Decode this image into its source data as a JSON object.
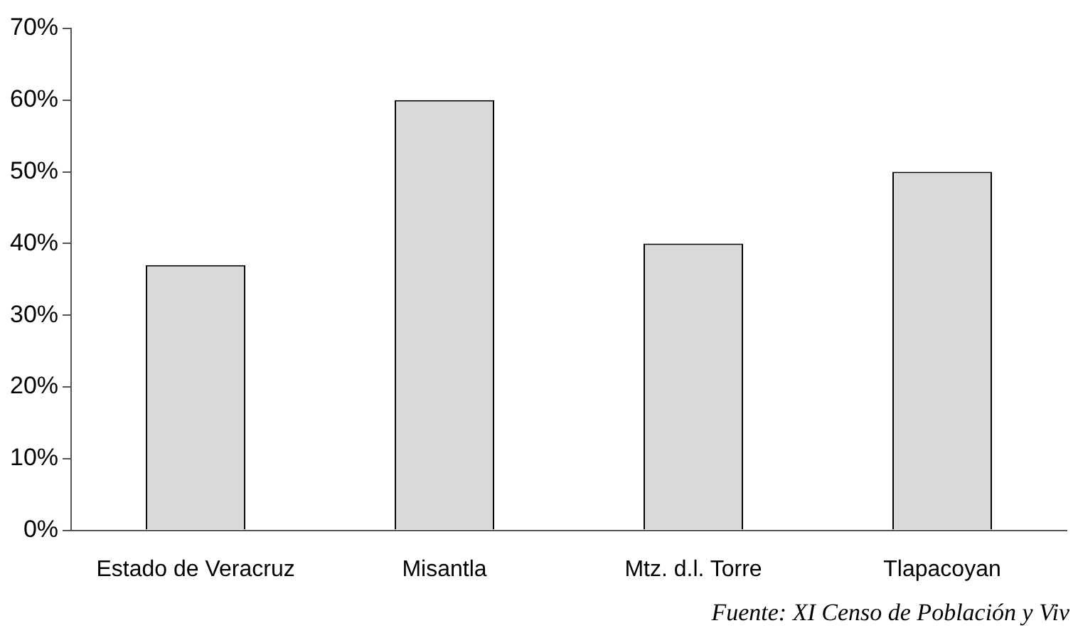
{
  "chart_data": {
    "type": "bar",
    "categories": [
      "Estado de Veracruz",
      "Misantla",
      "Mtz. d.l. Torre",
      "Tlapacoyan"
    ],
    "values": [
      37,
      60,
      40,
      50
    ],
    "color": "#d9d9d9",
    "ylim": [
      0,
      70
    ],
    "yticks": [
      {
        "value": 0,
        "label": "0%"
      },
      {
        "value": 10,
        "label": "10%"
      },
      {
        "value": 20,
        "label": "20%"
      },
      {
        "value": 30,
        "label": "30%"
      },
      {
        "value": 40,
        "label": "40%"
      },
      {
        "value": 50,
        "label": "50%"
      },
      {
        "value": 60,
        "label": "60%"
      },
      {
        "value": 70,
        "label": "70%"
      }
    ],
    "grid": false,
    "legend": false,
    "annotations": [
      "Fuente: XI Censo de Población y Viv"
    ]
  }
}
